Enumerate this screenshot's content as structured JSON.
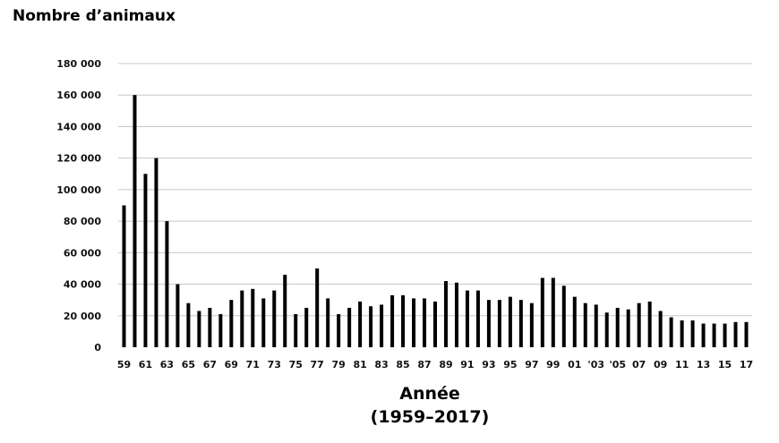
{
  "chart_data": {
    "type": "bar",
    "title": "",
    "ylabel": "Nombre d’animaux",
    "xlabel_line1": "Année",
    "xlabel_line2": "(1959–2017)",
    "ylim": [
      0,
      180000
    ],
    "yticks": [
      0,
      20000,
      40000,
      60000,
      80000,
      100000,
      120000,
      140000,
      160000,
      180000
    ],
    "ytick_labels": [
      "0",
      "20 000",
      "40 000",
      "60 000",
      "80 000",
      "100 000",
      "120 000",
      "140 000",
      "160 000",
      "180 000"
    ],
    "grid": true,
    "bar_color": "#000000",
    "categories": [
      "1959",
      "1960",
      "1961",
      "1962",
      "1963",
      "1964",
      "1965",
      "1966",
      "1967",
      "1968",
      "1969",
      "1970",
      "1971",
      "1972",
      "1973",
      "1974",
      "1975",
      "1976",
      "1977",
      "1978",
      "1979",
      "1980",
      "1981",
      "1982",
      "1983",
      "1984",
      "1985",
      "1986",
      "1987",
      "1988",
      "1989",
      "1990",
      "1991",
      "1992",
      "1993",
      "1994",
      "1995",
      "1996",
      "1997",
      "1998",
      "1999",
      "2000",
      "2001",
      "2002",
      "2003",
      "2004",
      "2005",
      "2006",
      "2007",
      "2008",
      "2009",
      "2010",
      "2011",
      "2012",
      "2013",
      "2014",
      "2015",
      "2016",
      "2017"
    ],
    "xtick_labels": [
      "59",
      "61",
      "63",
      "65",
      "67",
      "69",
      "71",
      "73",
      "75",
      "77",
      "79",
      "81",
      "83",
      "85",
      "87",
      "89",
      "91",
      "93",
      "95",
      "97",
      "99",
      "01",
      "'03",
      "'05",
      "07",
      "09",
      "11",
      "13",
      "15",
      "17"
    ],
    "values": [
      90000,
      160000,
      110000,
      120000,
      80000,
      40000,
      28000,
      23000,
      25000,
      21000,
      30000,
      36000,
      37000,
      31000,
      36000,
      46000,
      21000,
      25000,
      50000,
      31000,
      21000,
      25000,
      29000,
      26000,
      27000,
      33000,
      33000,
      31000,
      31000,
      29000,
      42000,
      41000,
      36000,
      36000,
      30000,
      30000,
      32000,
      30000,
      28000,
      44000,
      44000,
      39000,
      32000,
      28000,
      27000,
      22000,
      25000,
      24000,
      28000,
      29000,
      23000,
      19000,
      17000,
      17000,
      15000,
      15000,
      15000,
      16000,
      16000
    ]
  }
}
